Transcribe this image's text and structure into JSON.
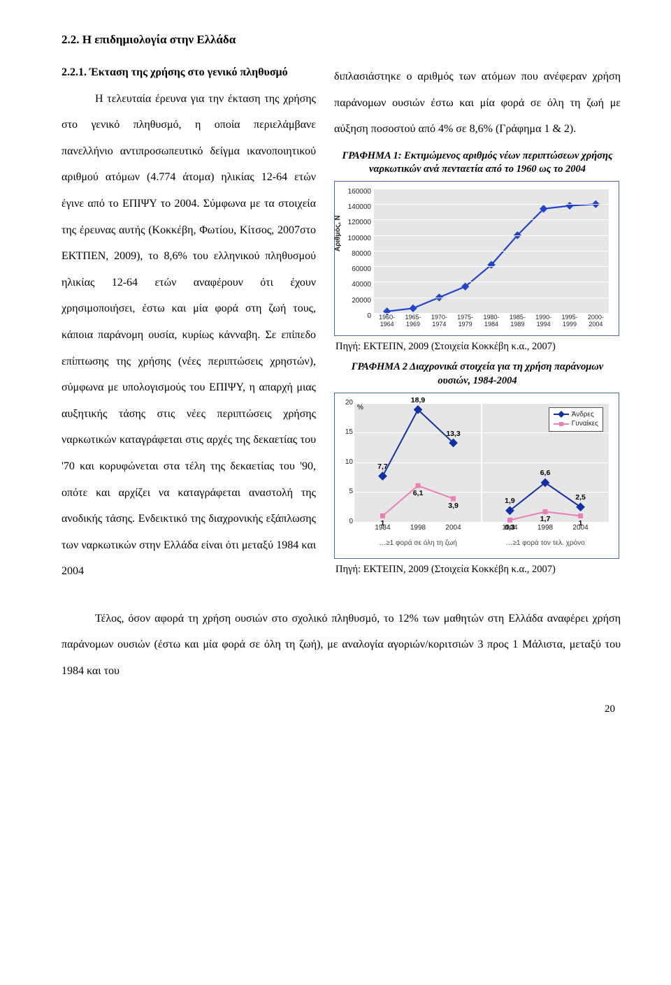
{
  "section_title": "2.2. Η επιδημιολογία στην Ελλάδα",
  "sub_head_number": "2.2.1. Έκταση της χρήσης στο γενικό πληθυσμό",
  "left_body": "Η τελευταία έρευνα για την έκταση της χρήσης στο γενικό πληθυσμό, η οποία περιελάμβανε πανελλήνιο αντιπροσωπευτικό δείγμα ικανοποιητικού αριθμού ατόμων (4.774 άτομα) ηλικίας 12-64 ετών έγινε από το ΕΠΙΨΥ το 2004. Σύμφωνα με τα στοιχεία της έρευνας αυτής (Κοκκέβη, Φωτίου, Κίτσος, 2007στο ΕΚΤΠΕΝ, 2009), το 8,6% του ελληνικού πληθυσμού ηλικίας 12-64 ετών αναφέρουν ότι έχουν χρησιμοποιήσει, έστω και μία φορά στη ζωή τους, κάποια παράνομη ουσία, κυρίως κάνναβη. Σε επίπεδο επίπτωσης της χρήσης (νέες περιπτώσεις χρηστών), σύμφωνα με υπολογισμούς του ΕΠΙΨΥ, η απαρχή μιας αυξητικής τάσης στις νέες περιπτώσεις χρήσης ναρκωτικών καταγράφεται στις αρχές της δεκαετίας του '70 και κορυφώνεται στα τέλη της δεκαετίας του '90, οπότε και αρχίζει να καταγράφεται αναστολή της ανοδικής τάσης. Ενδεικτικό της διαχρονικής εξάπλωσης των ναρκωτικών στην Ελλάδα είναι ότι μεταξύ 1984 και 2004",
  "right_intro": "διπλασιάστηκε ο αριθμός των ατόμων που ανέφεραν χρήση παράνομων ουσιών έστω και μία φορά σε όλη τη ζωή με αύξηση ποσοστού από 4% σε 8,6% (Γράφημα 1 & 2).",
  "chart1": {
    "title": "ΓΡΑΦΗΜΑ 1: Εκτιμώμενος αριθμός νέων περιπτώσεων χρήσης ναρκωτικών ανά πενταετία από το 1960 ως το 2004",
    "caption": "Πηγή: ΕΚΤΕΠΝ, 2009 (Στοιχεία Κοκκέβη κ.α., 2007)",
    "yaxis_title": "Αριθμός, N",
    "ymin": 0,
    "ymax": 160000,
    "ystep": 20000,
    "plot_bg": "#e6e6e6",
    "line_color": "#2244cc",
    "marker_fill": "#2244cc",
    "xlabels": [
      "1960-1964",
      "1965-1969",
      "1970-1974",
      "1975-1979",
      "1980-1984",
      "1985-1989",
      "1990-1994",
      "1995-1999",
      "2000-2004"
    ],
    "values": [
      2000,
      6000,
      20000,
      34000,
      62000,
      100000,
      134000,
      138000,
      140000
    ]
  },
  "chart2": {
    "title": "ΓΡΑΦΗΜΑ 2 Διαχρονικά στοιχεία για τη χρήση παράνομων ουσιών, 1984-2004",
    "caption": "Πηγή: ΕΚΤΕΠΝ, 2009 (Στοιχεία Κοκκέβη κ.α., 2007)",
    "ymin": 0,
    "ymax": 20,
    "ystep": 5,
    "pct_label": "%",
    "plot_bg": "#e6e6e6",
    "legend": [
      {
        "label": "Άνδρες",
        "color": "#1030a8",
        "marker": "diamond"
      },
      {
        "label": "Γυναίκες",
        "color": "#e97fb6",
        "marker": "square"
      }
    ],
    "panels": [
      {
        "sublabel": "…≥1 φορά σε όλη τη ζωή",
        "xlabels": [
          "1984",
          "1998",
          "2004"
        ],
        "series": [
          {
            "name": "Άνδρες",
            "color": "#1030a8",
            "marker": "diamond",
            "values": [
              7.7,
              18.9,
              13.3
            ]
          },
          {
            "name": "Γυναίκες",
            "color": "#e97fb6",
            "marker": "square",
            "values": [
              1,
              6.1,
              3.9
            ]
          }
        ]
      },
      {
        "sublabel": "…≥1 φορά τον τελ. χρόνο",
        "xlabels": [
          "1984",
          "1998",
          "2004"
        ],
        "series": [
          {
            "name": "Άνδρες",
            "color": "#1030a8",
            "marker": "diamond",
            "values": [
              1.9,
              6.6,
              2.5
            ]
          },
          {
            "name": "Γυναίκες",
            "color": "#e97fb6",
            "marker": "square",
            "values": [
              0.3,
              1.7,
              1
            ]
          }
        ]
      }
    ]
  },
  "footer": "Τέλος, όσον αφορά τη χρήση ουσιών στο σχολικό πληθυσμό, το 12% των μαθητών στη Ελλάδα αναφέρει χρήση παράνομων ουσιών (έστω και μία φορά σε όλη τη ζωή), με αναλογία αγοριών/κοριτσιών 3 προς 1 Μάλιστα, μεταξύ του 1984 και του",
  "page_number": "20"
}
